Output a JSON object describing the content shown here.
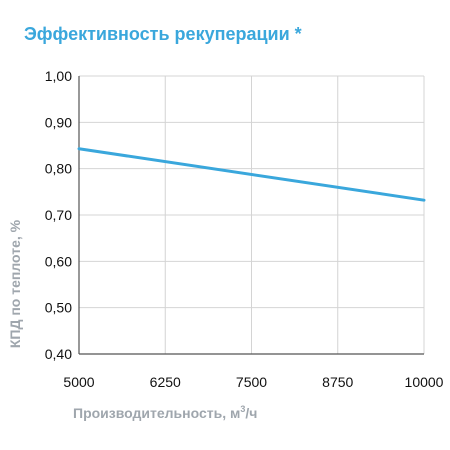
{
  "chart_data": {
    "type": "line",
    "title": "Эффективность рекуперации *",
    "xlabel": "Производительность, м",
    "xlabel_sup": "3",
    "xlabel_suffix": "/ч",
    "ylabel": "КПД по теплоте, %",
    "x_ticks": [
      "5000",
      "6250",
      "7500",
      "8750",
      "10000"
    ],
    "y_ticks": [
      "0,40",
      "0,50",
      "0,60",
      "0,70",
      "0,80",
      "0,90",
      "1,00"
    ],
    "xlim": [
      5000,
      10000
    ],
    "ylim": [
      0.4,
      1.0
    ],
    "grid": true,
    "series": [
      {
        "x": [
          5000,
          10000
        ],
        "y": [
          0.843,
          0.732
        ],
        "color": "#3aa7dc"
      }
    ]
  }
}
